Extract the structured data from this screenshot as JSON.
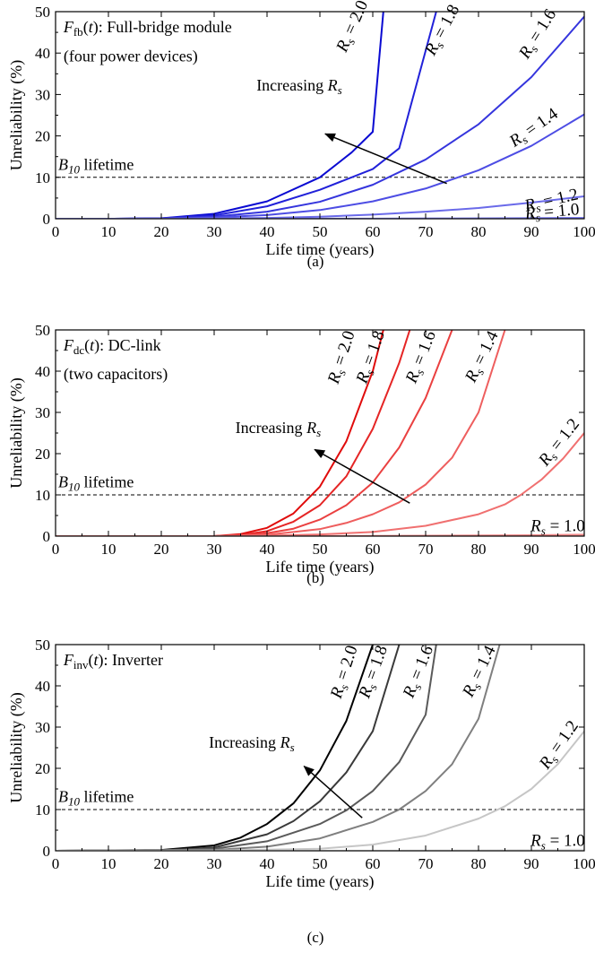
{
  "chart_data": [
    {
      "type": "line",
      "caption": "(a)",
      "xlabel": "Life time (years)",
      "ylabel": "Unreliability (%)",
      "xlim": [
        0,
        100
      ],
      "ylim": [
        0,
        50
      ],
      "xticks": [
        0,
        10,
        20,
        30,
        40,
        50,
        60,
        70,
        80,
        90,
        100
      ],
      "yticks": [
        0,
        10,
        20,
        30,
        40,
        50
      ],
      "grid": false,
      "annotation": {
        "func_main": "F",
        "func_sub": "fb",
        "func_arg": "(t)",
        "func_rest": ": Full-bridge module",
        "line2": "(four power devices)"
      },
      "increasing_label": "Increasing R",
      "increasing_sub": "s",
      "b10_label": "lifetime",
      "b10_main": "B",
      "b10_sub": "10",
      "b10_value": 10,
      "series": [
        {
          "name": "R = 2.0",
          "color": "#0a0ad2",
          "x": [
            0,
            10,
            20,
            30,
            40,
            50,
            56,
            60,
            62
          ],
          "y": [
            0,
            0,
            0.1,
            1.2,
            4.2,
            10.0,
            16.0,
            21.0,
            50.0
          ]
        },
        {
          "name": "R = 1.8",
          "color": "#2121d9",
          "x": [
            0,
            10,
            20,
            30,
            40,
            50,
            60,
            65,
            72
          ],
          "y": [
            0,
            0,
            0.1,
            0.8,
            3.0,
            7.0,
            12.0,
            17.0,
            50.0
          ]
        },
        {
          "name": "R = 1.6",
          "color": "#3535dd",
          "x": [
            0,
            10,
            20,
            30,
            40,
            50,
            60,
            70,
            80,
            90,
            100
          ],
          "y": [
            0,
            0,
            0.1,
            0.5,
            1.7,
            4.1,
            8.2,
            14.3,
            22.8,
            34.2,
            48.8
          ]
        },
        {
          "name": "R = 1.4",
          "color": "#4d4de4",
          "x": [
            0,
            10,
            20,
            30,
            40,
            50,
            60,
            70,
            80,
            90,
            100
          ],
          "y": [
            0,
            0,
            0,
            0.3,
            0.9,
            2.1,
            4.2,
            7.3,
            11.7,
            17.6,
            25.2
          ]
        },
        {
          "name": "R = 1.2",
          "color": "#6a6ae9",
          "x": [
            0,
            10,
            20,
            30,
            40,
            50,
            60,
            70,
            80,
            90,
            100
          ],
          "y": [
            0,
            0,
            0,
            0.1,
            0.2,
            0.5,
            1.0,
            1.7,
            2.6,
            3.9,
            5.4
          ]
        },
        {
          "name": "R = 1.0",
          "color": "#8080ee",
          "x": [
            0,
            10,
            20,
            30,
            40,
            50,
            60,
            70,
            80,
            90,
            100
          ],
          "y": [
            0,
            0,
            0,
            0,
            0.01,
            0.02,
            0.04,
            0.07,
            0.11,
            0.16,
            0.22
          ]
        }
      ],
      "curve_labels": [
        {
          "prefix": "R",
          "sub": "s",
          "text": " = 2.0"
        },
        {
          "prefix": "R",
          "sub": "s",
          "text": " = 1.8"
        },
        {
          "prefix": "R",
          "sub": "s",
          "text": " = 1.6"
        },
        {
          "prefix": "R",
          "sub": "s",
          "text": " = 1.4"
        },
        {
          "prefix": "R",
          "sub": "s",
          "text": " = 1.2"
        },
        {
          "prefix": "R",
          "sub": "s",
          "text": " = 1.0"
        }
      ]
    },
    {
      "type": "line",
      "caption": "(b)",
      "xlabel": "Life time (years)",
      "ylabel": "Unreliability (%)",
      "xlim": [
        0,
        100
      ],
      "ylim": [
        0,
        50
      ],
      "xticks": [
        0,
        10,
        20,
        30,
        40,
        50,
        60,
        70,
        80,
        90,
        100
      ],
      "yticks": [
        0,
        10,
        20,
        30,
        40,
        50
      ],
      "grid": false,
      "annotation": {
        "func_main": "F",
        "func_sub": "dc",
        "func_arg": "(t)",
        "func_rest": ": DC-link",
        "line2": "(two capacitors)"
      },
      "increasing_label": "Increasing R",
      "increasing_sub": "s",
      "b10_label": "lifetime",
      "b10_main": "B",
      "b10_sub": "10",
      "b10_value": 10,
      "series": [
        {
          "name": "R = 2.0",
          "color": "#e00b0b",
          "x": [
            0,
            30,
            35,
            40,
            45,
            50,
            55,
            60,
            62
          ],
          "y": [
            0,
            0,
            0.5,
            2.0,
            5.5,
            12.0,
            23.0,
            40.0,
            50.0
          ]
        },
        {
          "name": "R = 1.8",
          "color": "#e52525",
          "x": [
            0,
            30,
            35,
            40,
            45,
            50,
            55,
            60,
            65,
            67
          ],
          "y": [
            0,
            0,
            0.3,
            1.2,
            3.5,
            7.5,
            14.5,
            26.0,
            42.0,
            50.0
          ]
        },
        {
          "name": "R = 1.6",
          "color": "#ea4040",
          "x": [
            0,
            30,
            35,
            40,
            45,
            50,
            55,
            60,
            65,
            70,
            75
          ],
          "y": [
            0,
            0,
            0.2,
            0.7,
            1.8,
            4.0,
            7.5,
            13.0,
            21.5,
            33.5,
            50.0
          ]
        },
        {
          "name": "R = 1.4",
          "color": "#ee5e5e",
          "x": [
            0,
            30,
            40,
            50,
            55,
            60,
            65,
            70,
            75,
            80,
            85
          ],
          "y": [
            0,
            0,
            0.3,
            1.7,
            3.2,
            5.3,
            8.2,
            12.5,
            19.0,
            30.0,
            50.0
          ]
        },
        {
          "name": "R = 1.2",
          "color": "#f07070",
          "x": [
            0,
            30,
            40,
            50,
            60,
            70,
            80,
            85,
            88,
            92,
            96,
            100
          ],
          "y": [
            0,
            0,
            0.1,
            0.4,
            1.0,
            2.5,
            5.3,
            7.7,
            10.0,
            13.8,
            18.8,
            25.0
          ]
        },
        {
          "name": "R = 1.0",
          "color": "#f28a8a",
          "x": [
            0,
            40,
            60,
            80,
            90,
            100
          ],
          "y": [
            0,
            0.01,
            0.05,
            0.15,
            0.23,
            0.35
          ]
        }
      ],
      "curve_labels": [
        {
          "prefix": "R",
          "sub": "s",
          "text": " = 2.0"
        },
        {
          "prefix": "R",
          "sub": "s",
          "text": " = 1.8"
        },
        {
          "prefix": "R",
          "sub": "s",
          "text": " = 1.6"
        },
        {
          "prefix": "R",
          "sub": "s",
          "text": " = 1.4"
        },
        {
          "prefix": "R",
          "sub": "s",
          "text": " = 1.2"
        },
        {
          "prefix": "R",
          "sub": "s",
          "text": " = 1.0"
        }
      ]
    },
    {
      "type": "line",
      "caption": "(c)",
      "xlabel": "Life time (years)",
      "ylabel": "Unreliability (%)",
      "xlim": [
        0,
        100
      ],
      "ylim": [
        0,
        50
      ],
      "xticks": [
        0,
        10,
        20,
        30,
        40,
        50,
        60,
        70,
        80,
        90,
        100
      ],
      "yticks": [
        0,
        10,
        20,
        30,
        40,
        50
      ],
      "grid": false,
      "annotation": {
        "func_main": "F",
        "func_sub": "inv",
        "func_arg": "(t)",
        "func_rest": ": Inverter",
        "line2": ""
      },
      "increasing_label": "Increasing R",
      "increasing_sub": "s",
      "b10_label": "lifetime",
      "b10_main": "B",
      "b10_sub": "10",
      "b10_value": 10,
      "series": [
        {
          "name": "R = 2.0",
          "color": "#000000",
          "x": [
            0,
            20,
            30,
            35,
            40,
            45,
            50,
            55,
            60
          ],
          "y": [
            0,
            0.2,
            1.3,
            3.2,
            6.5,
            11.5,
            19.5,
            31.5,
            50.0
          ]
        },
        {
          "name": "R = 1.8",
          "color": "#3a3a3a",
          "x": [
            0,
            20,
            30,
            40,
            45,
            50,
            55,
            60,
            65
          ],
          "y": [
            0,
            0.1,
            0.8,
            4.0,
            7.2,
            12.0,
            19.0,
            29.0,
            50.0
          ]
        },
        {
          "name": "R = 1.6",
          "color": "#5a5a5a",
          "x": [
            0,
            20,
            30,
            40,
            50,
            55,
            60,
            65,
            70,
            72
          ],
          "y": [
            0,
            0.1,
            0.5,
            2.3,
            6.5,
            9.8,
            14.5,
            21.5,
            33.0,
            50.0
          ]
        },
        {
          "name": "R = 1.4",
          "color": "#7f7f7f",
          "x": [
            0,
            30,
            40,
            50,
            60,
            65,
            70,
            75,
            80,
            84
          ],
          "y": [
            0,
            0.2,
            1.0,
            3.0,
            7.0,
            10.0,
            14.5,
            21.0,
            32.0,
            50.0
          ]
        },
        {
          "name": "R = 1.2",
          "color": "#c6c6c6",
          "x": [
            0,
            30,
            50,
            60,
            70,
            80,
            85,
            90,
            95,
            100
          ],
          "y": [
            0,
            0.05,
            0.5,
            1.5,
            3.7,
            7.8,
            10.8,
            15.0,
            21.0,
            29.0
          ]
        },
        {
          "name": "R = 1.0",
          "color": "#e3e3e3",
          "x": [
            0,
            40,
            60,
            80,
            90,
            100
          ],
          "y": [
            0,
            0.01,
            0.04,
            0.12,
            0.2,
            0.3
          ]
        }
      ],
      "curve_labels": [
        {
          "prefix": "R",
          "sub": "s",
          "text": " = 2.0"
        },
        {
          "prefix": "R",
          "sub": "s",
          "text": " = 1.8"
        },
        {
          "prefix": "R",
          "sub": "s",
          "text": " = 1.6"
        },
        {
          "prefix": "R",
          "sub": "s",
          "text": " = 1.4"
        },
        {
          "prefix": "R",
          "sub": "s",
          "text": " = 1.2"
        },
        {
          "prefix": "R",
          "sub": "s",
          "text": " = 1.0"
        }
      ]
    }
  ]
}
